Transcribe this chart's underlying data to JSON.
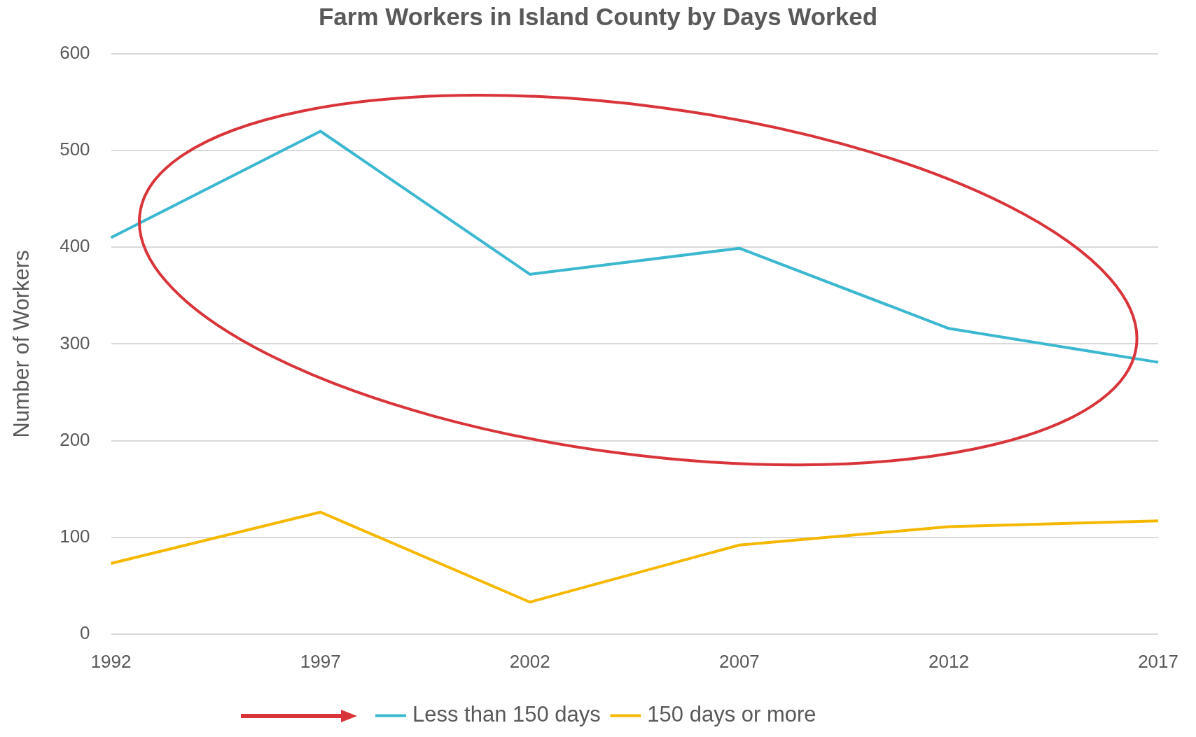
{
  "chart_data": {
    "type": "line",
    "title": "Farm Workers in Island County by Days Worked",
    "ylabel": "Number of Workers",
    "categories": [
      "1992",
      "1997",
      "2002",
      "2007",
      "2012",
      "2017"
    ],
    "series": [
      {
        "name": "Less than 150 days",
        "color": "#3bb8d0",
        "values": [
          410,
          520,
          372,
          399,
          316,
          281
        ]
      },
      {
        "name": "150 days or more",
        "color": "#f5b800",
        "values": [
          73,
          126,
          33,
          92,
          111,
          117
        ]
      }
    ],
    "ylim": [
      0,
      600
    ],
    "yticks": [
      0,
      100,
      200,
      300,
      400,
      500,
      600
    ],
    "grid": "y",
    "legend": "bottom",
    "marker": "none",
    "line_style": "solid"
  }
}
